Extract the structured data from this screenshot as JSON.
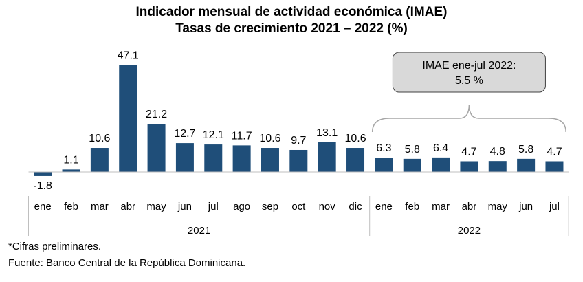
{
  "chart_data": {
    "type": "bar",
    "title": "Indicador mensual de actividad económica (IMAE)",
    "subtitle": "Tasas de crecimiento 2021 – 2022 (%)",
    "categories": [
      "ene",
      "feb",
      "mar",
      "abr",
      "may",
      "jun",
      "jul",
      "ago",
      "sep",
      "oct",
      "nov",
      "dic",
      "ene",
      "feb",
      "mar",
      "abr",
      "may",
      "jun",
      "jul"
    ],
    "values": [
      -1.8,
      1.1,
      10.6,
      47.1,
      21.2,
      12.7,
      12.1,
      11.7,
      10.6,
      9.7,
      13.1,
      10.6,
      6.3,
      5.8,
      6.4,
      4.7,
      4.8,
      5.8,
      4.7
    ],
    "labels": [
      "-1.8",
      "1.1",
      "10.6",
      "47.1",
      "21.2",
      "12.7",
      "12.1",
      "11.7",
      "10.6",
      "9.7",
      "13.1",
      "10.6",
      "6.3",
      "5.8",
      "6.4",
      "4.7",
      "4.8",
      "5.8",
      "4.7"
    ],
    "groups": [
      {
        "name": "2021",
        "count": 12
      },
      {
        "name": "2022",
        "count": 7
      }
    ],
    "annotation": {
      "line1": "IMAE ene-jul 2022:",
      "line2": "5.5 %"
    },
    "bar_color": "#1f4e79",
    "xlabel": "",
    "ylabel": "",
    "grid": false
  },
  "footnote": "*Cifras preliminares.",
  "source": "Fuente: Banco Central de la República Dominicana."
}
